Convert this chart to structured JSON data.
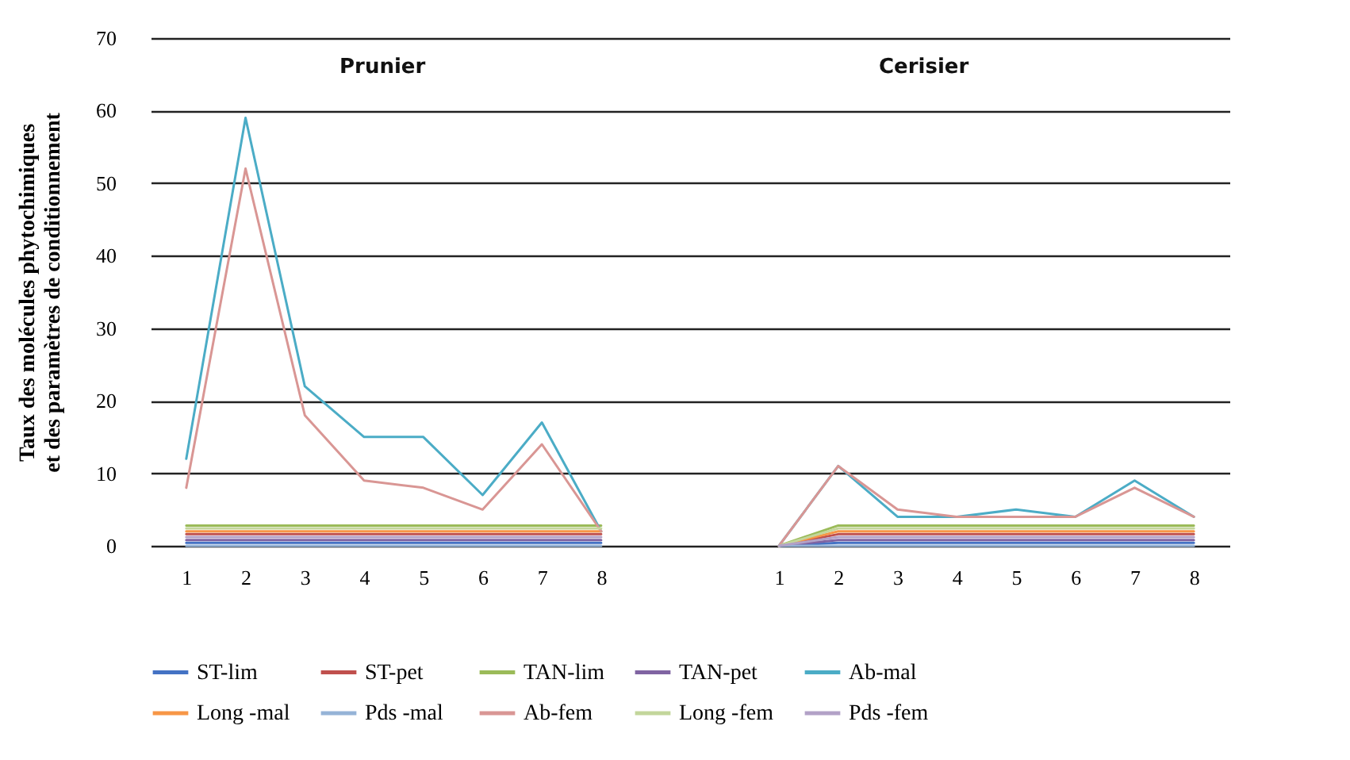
{
  "chart_data": {
    "type": "line",
    "ylabel": "Taux des molécules phytochimiques\net des paramètres de conditionnement",
    "annotations": [
      "Prunier",
      "Cerisier"
    ],
    "categories": [
      "1",
      "2",
      "3",
      "4",
      "5",
      "6",
      "7",
      "8",
      null,
      null,
      "1",
      "2",
      "3",
      "4",
      "5",
      "6",
      "7",
      "8"
    ],
    "series": [
      {
        "name": "ST-lim",
        "color": "#4472c4",
        "values": [
          0.4,
          0.4,
          0.4,
          0.4,
          0.4,
          0.4,
          0.4,
          0.4,
          null,
          null,
          0,
          0.4,
          0.4,
          0.4,
          0.4,
          0.4,
          0.4,
          0.4
        ]
      },
      {
        "name": "ST-pet",
        "color": "#c0504d",
        "values": [
          1.6,
          1.6,
          1.6,
          1.6,
          1.6,
          1.6,
          1.6,
          1.6,
          null,
          null,
          0,
          1.6,
          1.6,
          1.6,
          1.6,
          1.6,
          1.6,
          1.6
        ]
      },
      {
        "name": "TAN-lim",
        "color": "#9bbb59",
        "values": [
          2.8,
          2.8,
          2.8,
          2.8,
          2.8,
          2.8,
          2.8,
          2.8,
          null,
          null,
          0,
          2.8,
          2.8,
          2.8,
          2.8,
          2.8,
          2.8,
          2.8
        ]
      },
      {
        "name": "TAN-pet",
        "color": "#8064a2",
        "values": [
          0.8,
          0.8,
          0.8,
          0.8,
          0.8,
          0.8,
          0.8,
          0.8,
          null,
          null,
          0,
          0.8,
          0.8,
          0.8,
          0.8,
          0.8,
          0.8,
          0.8
        ]
      },
      {
        "name": "Ab-mal",
        "color": "#4bacc6",
        "values": [
          12,
          59,
          22,
          15,
          15,
          7,
          17,
          2,
          null,
          null,
          0,
          11,
          4,
          4,
          5,
          4,
          9,
          4
        ]
      },
      {
        "name": "Long -mal",
        "color": "#f79646",
        "values": [
          2,
          2,
          2,
          2,
          2,
          2,
          2,
          2,
          null,
          null,
          0,
          2,
          2,
          2,
          2,
          2,
          2,
          2
        ]
      },
      {
        "name": "Pds  -mal",
        "color": "#95b3d7",
        "values": [
          0,
          0,
          0,
          0,
          0,
          0,
          0,
          0,
          null,
          null,
          0,
          0,
          0,
          0,
          0,
          0,
          0,
          0
        ]
      },
      {
        "name": "Ab-fem",
        "color": "#d99694",
        "values": [
          8,
          52,
          18,
          9,
          8,
          5,
          14,
          2,
          null,
          null,
          0,
          11,
          5,
          4,
          4,
          4,
          8,
          4
        ]
      },
      {
        "name": "Long -fem",
        "color": "#c3d69b",
        "values": [
          2.4,
          2.4,
          2.4,
          2.4,
          2.4,
          2.4,
          2.4,
          2.4,
          null,
          null,
          0,
          2.4,
          2.4,
          2.4,
          2.4,
          2.4,
          2.4,
          2.4
        ]
      },
      {
        "name": "Pds  -fem",
        "color": "#b2a1c7",
        "values": [
          1.2,
          1.2,
          1.2,
          1.2,
          1.2,
          1.2,
          1.2,
          1.2,
          null,
          null,
          0,
          1.2,
          1.2,
          1.2,
          1.2,
          1.2,
          1.2,
          1.2
        ]
      }
    ],
    "ylim": [
      0,
      70
    ],
    "yticks": [
      0,
      10,
      20,
      30,
      40,
      50,
      60,
      70
    ],
    "grid": "y",
    "legend": "bottom"
  }
}
